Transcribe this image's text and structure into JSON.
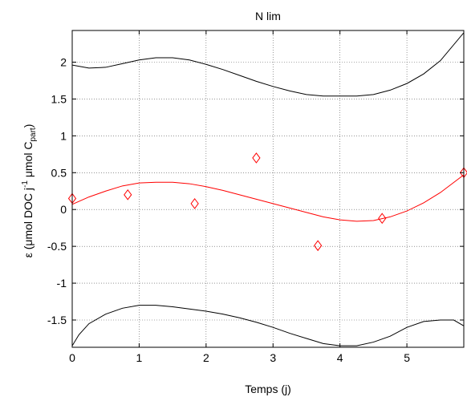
{
  "chart_data": {
    "type": "line",
    "title": "N lim",
    "xlabel": "Temps (j)",
    "ylabel": {
      "prefix": "ε  (μmol DOC j",
      "sup1": "-1",
      "mid": " μmol C",
      "sub": "part",
      "suffix": ")"
    },
    "xlim": [
      0,
      5.85
    ],
    "ylim": [
      -1.87,
      2.43
    ],
    "xticks": [
      0,
      1,
      2,
      3,
      4,
      5
    ],
    "yticks": [
      -1.5,
      -1,
      -0.5,
      0,
      0.5,
      1,
      1.5,
      2
    ],
    "xtick_labels": [
      "0",
      "1",
      "2",
      "3",
      "4",
      "5"
    ],
    "ytick_labels": [
      "-1.5",
      "-1",
      "-0.5",
      "0",
      "0.5",
      "1",
      "1.5",
      "2"
    ],
    "grid": true,
    "series": [
      {
        "kind": "points",
        "marker": "diamond",
        "color": "#ff0000",
        "x": [
          0.0,
          0.83,
          1.83,
          2.75,
          3.67,
          4.63,
          5.85
        ],
        "y": [
          0.15,
          0.2,
          0.08,
          0.7,
          -0.49,
          -0.12,
          0.5
        ]
      },
      {
        "kind": "fit",
        "color": "#ff0000",
        "x": [
          0,
          0.25,
          0.5,
          0.75,
          1.0,
          1.25,
          1.5,
          1.75,
          2.0,
          2.25,
          2.5,
          2.75,
          3.0,
          3.25,
          3.5,
          3.75,
          4.0,
          4.25,
          4.5,
          4.75,
          5.0,
          5.25,
          5.5,
          5.85
        ],
        "y": [
          0.07,
          0.17,
          0.25,
          0.32,
          0.36,
          0.37,
          0.37,
          0.35,
          0.31,
          0.26,
          0.2,
          0.14,
          0.08,
          0.02,
          -0.04,
          -0.1,
          -0.14,
          -0.16,
          -0.15,
          -0.1,
          -0.02,
          0.09,
          0.23,
          0.47
        ]
      },
      {
        "kind": "upper-bound",
        "color": "#000000",
        "x": [
          0,
          0.25,
          0.5,
          0.75,
          1.0,
          1.25,
          1.5,
          1.75,
          2.0,
          2.25,
          2.5,
          2.75,
          3.0,
          3.25,
          3.5,
          3.75,
          4.0,
          4.25,
          4.5,
          4.75,
          5.0,
          5.25,
          5.5,
          5.85
        ],
        "y": [
          1.96,
          1.92,
          1.93,
          1.98,
          2.03,
          2.06,
          2.06,
          2.03,
          1.97,
          1.9,
          1.82,
          1.74,
          1.67,
          1.61,
          1.56,
          1.54,
          1.54,
          1.54,
          1.56,
          1.62,
          1.71,
          1.84,
          2.02,
          2.4
        ]
      },
      {
        "kind": "lower-bound",
        "color": "#000000",
        "x": [
          0,
          0.1,
          0.25,
          0.5,
          0.75,
          1.0,
          1.25,
          1.5,
          1.75,
          2.0,
          2.25,
          2.5,
          2.75,
          3.0,
          3.25,
          3.5,
          3.75,
          4.0,
          4.25,
          4.5,
          4.75,
          5.0,
          5.25,
          5.5,
          5.7,
          5.85
        ],
        "y": [
          -1.85,
          -1.7,
          -1.55,
          -1.42,
          -1.34,
          -1.3,
          -1.3,
          -1.32,
          -1.35,
          -1.38,
          -1.42,
          -1.47,
          -1.53,
          -1.6,
          -1.68,
          -1.75,
          -1.82,
          -1.85,
          -1.85,
          -1.8,
          -1.72,
          -1.6,
          -1.52,
          -1.5,
          -1.5,
          -1.58
        ]
      }
    ]
  }
}
